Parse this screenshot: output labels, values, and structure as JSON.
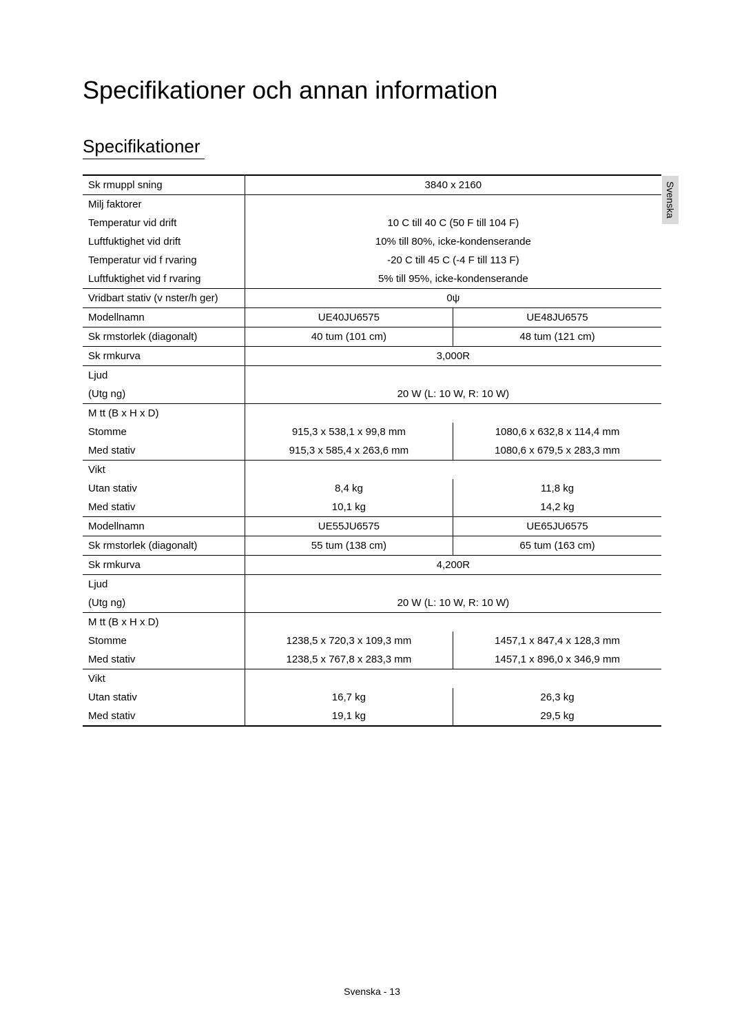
{
  "headings": {
    "main": "Specifikationer och annan information",
    "sub": "Specifikationer"
  },
  "side_tab": "Svenska",
  "footer": "Svenska - 13",
  "rows": [
    {
      "label": "Sk rmuppl sning",
      "span": "3840 x 2160",
      "top": "thick"
    },
    {
      "label": "Milj faktorer",
      "span": "",
      "top": "thin"
    },
    {
      "label": "Temperatur vid drift",
      "span": "10 C till 40 C (50 F till 104 F)"
    },
    {
      "label": "Luftfuktighet vid drift",
      "span": "10% till 80%, icke-kondenserande"
    },
    {
      "label": "Temperatur vid f rvaring",
      "span": "-20 C till 45 C (-4 F till 113 F)"
    },
    {
      "label": "Luftfuktighet vid f rvaring",
      "span": "5% till 95%, icke-kondenserande"
    },
    {
      "label": "Vridbart stativ (v nster/h ger)",
      "span": "0ψ",
      "top": "thin"
    },
    {
      "label": "Modellnamn",
      "left": "UE40JU6575",
      "right": "UE48JU6575",
      "top": "thin"
    },
    {
      "label": "Sk rmstorlek (diagonalt)",
      "left": "40 tum (101 cm)",
      "right": "48 tum (121 cm)",
      "top": "thin"
    },
    {
      "label": "Sk rmkurva",
      "span": "3,000R",
      "top": "thin"
    },
    {
      "label": "Ljud",
      "span": "",
      "top": "thin"
    },
    {
      "label": "(Utg ng)",
      "span": "20 W (L: 10 W, R: 10 W)"
    },
    {
      "label": "M tt (B x H x D)",
      "span": "",
      "top": "thin"
    },
    {
      "label": "Stomme",
      "left": "915,3 x 538,1 x 99,8 mm",
      "right": "1080,6 x 632,8 x 114,4 mm"
    },
    {
      "label": "Med stativ",
      "left": "915,3 x 585,4 x 263,6 mm",
      "right": "1080,6 x 679,5 x 283,3 mm"
    },
    {
      "label": "Vikt",
      "span": "",
      "top": "thin"
    },
    {
      "label": "Utan stativ",
      "left": "8,4 kg",
      "right": "11,8 kg"
    },
    {
      "label": "Med stativ",
      "left": "10,1 kg",
      "right": "14,2 kg"
    },
    {
      "label": "Modellnamn",
      "left": "UE55JU6575",
      "right": "UE65JU6575",
      "top": "thin"
    },
    {
      "label": "Sk rmstorlek (diagonalt)",
      "left": "55 tum (138 cm)",
      "right": "65 tum (163 cm)",
      "top": "thin"
    },
    {
      "label": "Sk rmkurva",
      "span": "4,200R",
      "top": "thin"
    },
    {
      "label": "Ljud",
      "span": "",
      "top": "thin"
    },
    {
      "label": "(Utg ng)",
      "span": "20 W (L: 10 W, R: 10 W)"
    },
    {
      "label": "M tt (B x H x D)",
      "span": "",
      "top": "thin"
    },
    {
      "label": "Stomme",
      "left": "1238,5 x 720,3 x 109,3 mm",
      "right": "1457,1 x 847,4 x 128,3 mm"
    },
    {
      "label": "Med stativ",
      "left": "1238,5 x 767,8 x 283,3 mm",
      "right": "1457,1 x 896,0 x 346,9 mm"
    },
    {
      "label": "Vikt",
      "span": "",
      "top": "thin"
    },
    {
      "label": "Utan stativ",
      "left": "16,7 kg",
      "right": "26,3 kg"
    },
    {
      "label": "Med stativ",
      "left": "19,1 kg",
      "right": "29,5 kg",
      "bottom": "thick"
    }
  ]
}
